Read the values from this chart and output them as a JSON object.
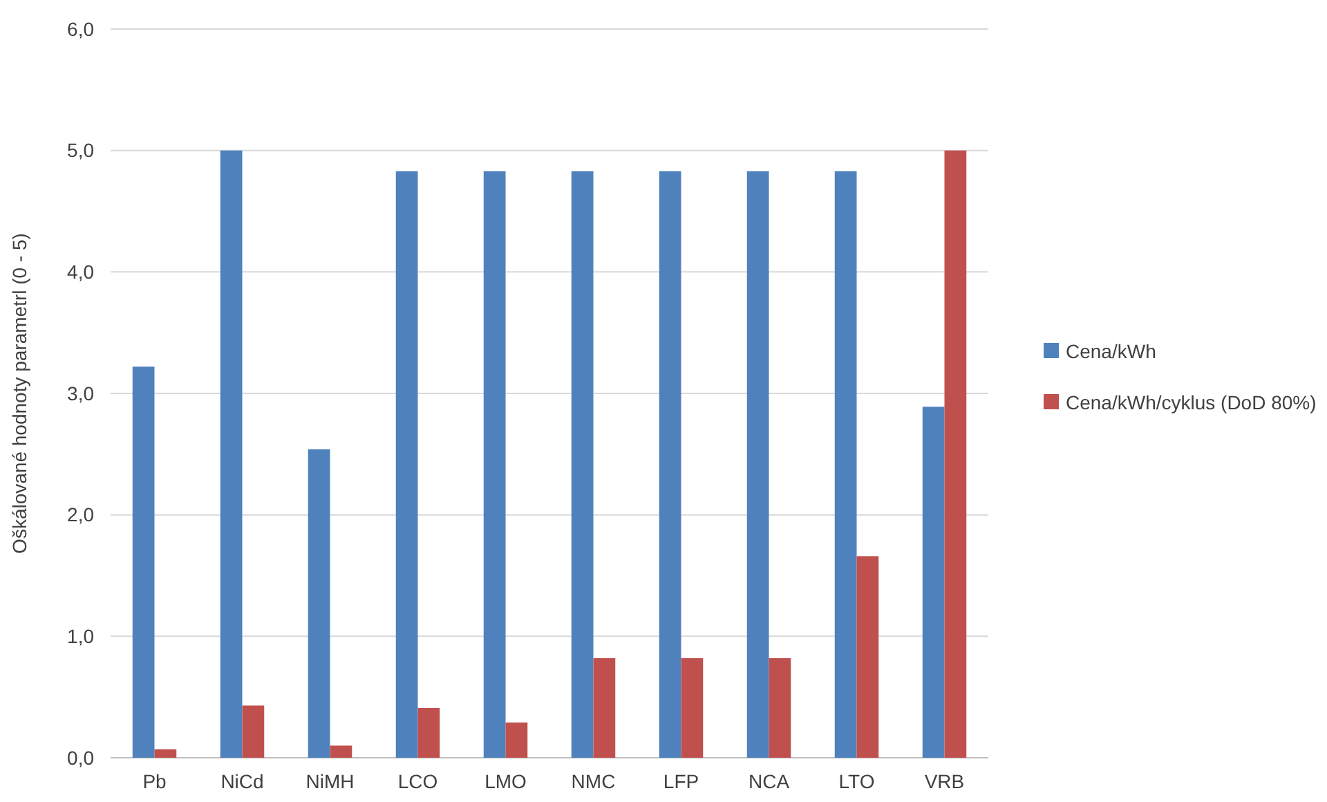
{
  "chart_data": {
    "type": "bar",
    "ylabel": "Oškálované hodnoty parametrl (0 - 5)",
    "categories": [
      "Pb",
      "NiCd",
      "NiMH",
      "LCO",
      "LMO",
      "NMC",
      "LFP",
      "NCA",
      "LTO",
      "VRB"
    ],
    "series": [
      {
        "name": "Cena/kWh",
        "color": "#4f81bd",
        "values": [
          3.22,
          5.0,
          2.54,
          4.83,
          4.83,
          4.83,
          4.83,
          4.83,
          4.83,
          2.89
        ]
      },
      {
        "name": "Cena/kWh/cyklus (DoD 80%)",
        "color": "#c0504d",
        "values": [
          0.07,
          0.43,
          0.1,
          0.41,
          0.29,
          0.82,
          0.82,
          0.82,
          1.66,
          5.0
        ]
      }
    ],
    "ylim": [
      0,
      6
    ],
    "yticks": [
      {
        "value": 0,
        "label": "0,0"
      },
      {
        "value": 1,
        "label": "1,0"
      },
      {
        "value": 2,
        "label": "2,0"
      },
      {
        "value": 3,
        "label": "3,0"
      },
      {
        "value": 4,
        "label": "4,0"
      },
      {
        "value": 5,
        "label": "5,0"
      },
      {
        "value": 6,
        "label": "6,0"
      }
    ],
    "grid": "y",
    "legend": "right"
  }
}
